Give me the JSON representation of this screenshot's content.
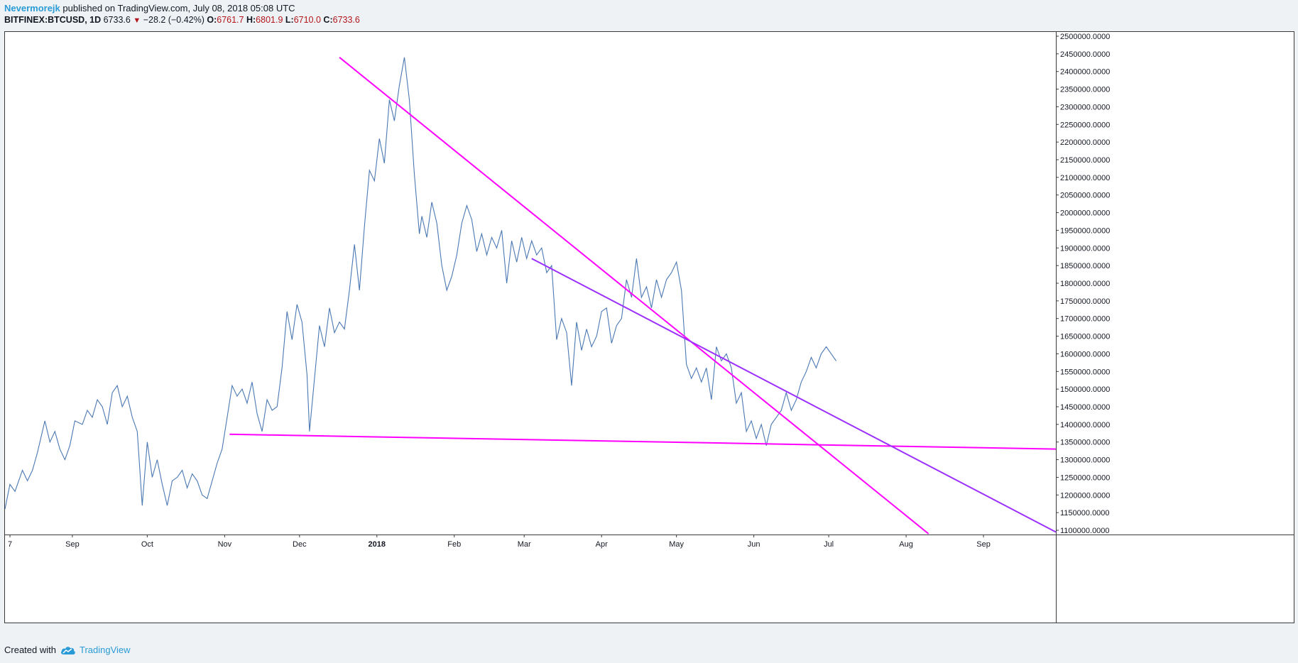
{
  "header": {
    "author": "Nevermorejk",
    "published_text": "published on TradingView.com, July 08, 2018 05:08 UTC",
    "symbol": "BITFINEX:BTCUSD, 1D",
    "last": "6733.6",
    "change": "−28.2 (−0.42%)",
    "open_label": "O:",
    "open": "6761.7",
    "high_label": "H:",
    "high": "6801.9",
    "low_label": "L:",
    "low": "6710.0",
    "close_label": "C:",
    "close": "6733.6"
  },
  "footer": {
    "created_with": "Created with",
    "brand": "TradingView"
  },
  "chart_data": {
    "type": "line",
    "ylim": [
      1100000,
      2500000
    ],
    "y_ticks": [
      "2500000.0000",
      "2450000.0000",
      "2400000.0000",
      "2350000.0000",
      "2300000.0000",
      "2250000.0000",
      "2200000.0000",
      "2150000.0000",
      "2100000.0000",
      "2050000.0000",
      "2000000.0000",
      "1950000.0000",
      "1900000.0000",
      "1850000.0000",
      "1800000.0000",
      "1750000.0000",
      "1700000.0000",
      "1650000.0000",
      "1600000.0000",
      "1550000.0000",
      "1500000.0000",
      "1450000.0000",
      "1400000.0000",
      "1350000.0000",
      "1300000.0000",
      "1250000.0000",
      "1200000.0000",
      "1150000.0000",
      "1100000.0000"
    ],
    "x_range": [
      "2017-08-05",
      "2018-09-30"
    ],
    "x_ticks": [
      {
        "label": "7",
        "date": "2017-08-07"
      },
      {
        "label": "Sep",
        "date": "2017-09-01"
      },
      {
        "label": "Oct",
        "date": "2017-10-01"
      },
      {
        "label": "Nov",
        "date": "2017-11-01"
      },
      {
        "label": "Dec",
        "date": "2017-12-01"
      },
      {
        "label": "2018",
        "date": "2018-01-01",
        "bold": true
      },
      {
        "label": "Feb",
        "date": "2018-02-01"
      },
      {
        "label": "Mar",
        "date": "2018-03-01"
      },
      {
        "label": "Apr",
        "date": "2018-04-01"
      },
      {
        "label": "May",
        "date": "2018-05-01"
      },
      {
        "label": "Jun",
        "date": "2018-06-01"
      },
      {
        "label": "Jul",
        "date": "2018-07-01"
      },
      {
        "label": "Aug",
        "date": "2018-08-01"
      },
      {
        "label": "Sep",
        "date": "2018-09-01"
      }
    ],
    "series": [
      {
        "color": "#4a78b3",
        "points": [
          [
            "2017-08-05",
            1160000
          ],
          [
            "2017-08-07",
            1230000
          ],
          [
            "2017-08-09",
            1210000
          ],
          [
            "2017-08-12",
            1270000
          ],
          [
            "2017-08-14",
            1240000
          ],
          [
            "2017-08-16",
            1270000
          ],
          [
            "2017-08-18",
            1320000
          ],
          [
            "2017-08-21",
            1410000
          ],
          [
            "2017-08-23",
            1350000
          ],
          [
            "2017-08-25",
            1380000
          ],
          [
            "2017-08-27",
            1330000
          ],
          [
            "2017-08-29",
            1300000
          ],
          [
            "2017-08-31",
            1340000
          ],
          [
            "2017-09-02",
            1410000
          ],
          [
            "2017-09-05",
            1400000
          ],
          [
            "2017-09-07",
            1440000
          ],
          [
            "2017-09-09",
            1420000
          ],
          [
            "2017-09-11",
            1470000
          ],
          [
            "2017-09-13",
            1450000
          ],
          [
            "2017-09-15",
            1400000
          ],
          [
            "2017-09-17",
            1490000
          ],
          [
            "2017-09-19",
            1510000
          ],
          [
            "2017-09-21",
            1450000
          ],
          [
            "2017-09-23",
            1480000
          ],
          [
            "2017-09-25",
            1420000
          ],
          [
            "2017-09-27",
            1380000
          ],
          [
            "2017-09-29",
            1170000
          ],
          [
            "2017-10-01",
            1350000
          ],
          [
            "2017-10-03",
            1250000
          ],
          [
            "2017-10-05",
            1300000
          ],
          [
            "2017-10-07",
            1230000
          ],
          [
            "2017-10-09",
            1170000
          ],
          [
            "2017-10-11",
            1240000
          ],
          [
            "2017-10-13",
            1250000
          ],
          [
            "2017-10-15",
            1270000
          ],
          [
            "2017-10-17",
            1220000
          ],
          [
            "2017-10-19",
            1260000
          ],
          [
            "2017-10-21",
            1240000
          ],
          [
            "2017-10-23",
            1200000
          ],
          [
            "2017-10-25",
            1190000
          ],
          [
            "2017-10-27",
            1240000
          ],
          [
            "2017-10-29",
            1290000
          ],
          [
            "2017-10-31",
            1330000
          ],
          [
            "2017-11-02",
            1420000
          ],
          [
            "2017-11-04",
            1510000
          ],
          [
            "2017-11-06",
            1480000
          ],
          [
            "2017-11-08",
            1500000
          ],
          [
            "2017-11-10",
            1460000
          ],
          [
            "2017-11-12",
            1520000
          ],
          [
            "2017-11-14",
            1430000
          ],
          [
            "2017-11-16",
            1380000
          ],
          [
            "2017-11-18",
            1470000
          ],
          [
            "2017-11-20",
            1440000
          ],
          [
            "2017-11-22",
            1450000
          ],
          [
            "2017-11-24",
            1560000
          ],
          [
            "2017-11-26",
            1720000
          ],
          [
            "2017-11-28",
            1640000
          ],
          [
            "2017-11-30",
            1740000
          ],
          [
            "2017-12-02",
            1690000
          ],
          [
            "2017-12-04",
            1540000
          ],
          [
            "2017-12-05",
            1380000
          ],
          [
            "2017-12-07",
            1530000
          ],
          [
            "2017-12-09",
            1680000
          ],
          [
            "2017-12-11",
            1620000
          ],
          [
            "2017-12-13",
            1730000
          ],
          [
            "2017-12-15",
            1660000
          ],
          [
            "2017-12-17",
            1690000
          ],
          [
            "2017-12-19",
            1670000
          ],
          [
            "2017-12-21",
            1780000
          ],
          [
            "2017-12-23",
            1910000
          ],
          [
            "2017-12-25",
            1780000
          ],
          [
            "2017-12-27",
            1960000
          ],
          [
            "2017-12-29",
            2120000
          ],
          [
            "2017-12-31",
            2090000
          ],
          [
            "2018-01-02",
            2210000
          ],
          [
            "2018-01-04",
            2140000
          ],
          [
            "2018-01-06",
            2320000
          ],
          [
            "2018-01-08",
            2260000
          ],
          [
            "2018-01-10",
            2360000
          ],
          [
            "2018-01-12",
            2440000
          ],
          [
            "2018-01-14",
            2320000
          ],
          [
            "2018-01-16",
            2110000
          ],
          [
            "2018-01-18",
            1940000
          ],
          [
            "2018-01-19",
            1990000
          ],
          [
            "2018-01-21",
            1930000
          ],
          [
            "2018-01-23",
            2030000
          ],
          [
            "2018-01-25",
            1970000
          ],
          [
            "2018-01-27",
            1850000
          ],
          [
            "2018-01-29",
            1780000
          ],
          [
            "2018-01-31",
            1820000
          ],
          [
            "2018-02-02",
            1880000
          ],
          [
            "2018-02-04",
            1970000
          ],
          [
            "2018-02-06",
            2020000
          ],
          [
            "2018-02-08",
            1980000
          ],
          [
            "2018-02-10",
            1890000
          ],
          [
            "2018-02-12",
            1940000
          ],
          [
            "2018-02-14",
            1880000
          ],
          [
            "2018-02-16",
            1930000
          ],
          [
            "2018-02-18",
            1900000
          ],
          [
            "2018-02-20",
            1950000
          ],
          [
            "2018-02-22",
            1800000
          ],
          [
            "2018-02-24",
            1920000
          ],
          [
            "2018-02-26",
            1860000
          ],
          [
            "2018-02-28",
            1930000
          ],
          [
            "2018-03-02",
            1870000
          ],
          [
            "2018-03-04",
            1920000
          ],
          [
            "2018-03-06",
            1880000
          ],
          [
            "2018-03-08",
            1900000
          ],
          [
            "2018-03-10",
            1830000
          ],
          [
            "2018-03-12",
            1850000
          ],
          [
            "2018-03-14",
            1640000
          ],
          [
            "2018-03-16",
            1700000
          ],
          [
            "2018-03-18",
            1660000
          ],
          [
            "2018-03-20",
            1510000
          ],
          [
            "2018-03-22",
            1690000
          ],
          [
            "2018-03-24",
            1610000
          ],
          [
            "2018-03-26",
            1670000
          ],
          [
            "2018-03-28",
            1620000
          ],
          [
            "2018-03-30",
            1650000
          ],
          [
            "2018-04-01",
            1720000
          ],
          [
            "2018-04-03",
            1730000
          ],
          [
            "2018-04-05",
            1630000
          ],
          [
            "2018-04-07",
            1680000
          ],
          [
            "2018-04-09",
            1700000
          ],
          [
            "2018-04-11",
            1810000
          ],
          [
            "2018-04-13",
            1760000
          ],
          [
            "2018-04-15",
            1870000
          ],
          [
            "2018-04-17",
            1760000
          ],
          [
            "2018-04-19",
            1790000
          ],
          [
            "2018-04-21",
            1730000
          ],
          [
            "2018-04-23",
            1810000
          ],
          [
            "2018-04-25",
            1760000
          ],
          [
            "2018-04-27",
            1810000
          ],
          [
            "2018-04-29",
            1830000
          ],
          [
            "2018-05-01",
            1860000
          ],
          [
            "2018-05-03",
            1780000
          ],
          [
            "2018-05-05",
            1570000
          ],
          [
            "2018-05-07",
            1530000
          ],
          [
            "2018-05-09",
            1560000
          ],
          [
            "2018-05-11",
            1520000
          ],
          [
            "2018-05-13",
            1560000
          ],
          [
            "2018-05-15",
            1470000
          ],
          [
            "2018-05-17",
            1620000
          ],
          [
            "2018-05-19",
            1580000
          ],
          [
            "2018-05-21",
            1600000
          ],
          [
            "2018-05-23",
            1560000
          ],
          [
            "2018-05-25",
            1460000
          ],
          [
            "2018-05-27",
            1490000
          ],
          [
            "2018-05-29",
            1380000
          ],
          [
            "2018-05-31",
            1410000
          ],
          [
            "2018-06-02",
            1360000
          ],
          [
            "2018-06-04",
            1400000
          ],
          [
            "2018-06-06",
            1340000
          ],
          [
            "2018-06-08",
            1400000
          ],
          [
            "2018-06-10",
            1420000
          ],
          [
            "2018-06-12",
            1440000
          ],
          [
            "2018-06-14",
            1490000
          ],
          [
            "2018-06-16",
            1440000
          ],
          [
            "2018-06-18",
            1470000
          ],
          [
            "2018-06-20",
            1520000
          ],
          [
            "2018-06-22",
            1550000
          ],
          [
            "2018-06-24",
            1590000
          ],
          [
            "2018-06-26",
            1560000
          ],
          [
            "2018-06-28",
            1600000
          ],
          [
            "2018-06-30",
            1620000
          ],
          [
            "2018-07-02",
            1600000
          ],
          [
            "2018-07-04",
            1580000
          ]
        ]
      }
    ],
    "trendlines": [
      {
        "color": "#ff00ff",
        "from": [
          "2017-11-03",
          1372000
        ],
        "to": [
          "2018-10-01",
          1330000
        ]
      },
      {
        "color": "#ff00ff",
        "from": [
          "2017-12-17",
          2440000
        ],
        "to": [
          "2018-08-10",
          1090000
        ]
      },
      {
        "color": "#9b30ff",
        "from": [
          "2018-03-04",
          1870000
        ],
        "to": [
          "2018-09-30",
          1095000
        ]
      }
    ]
  }
}
